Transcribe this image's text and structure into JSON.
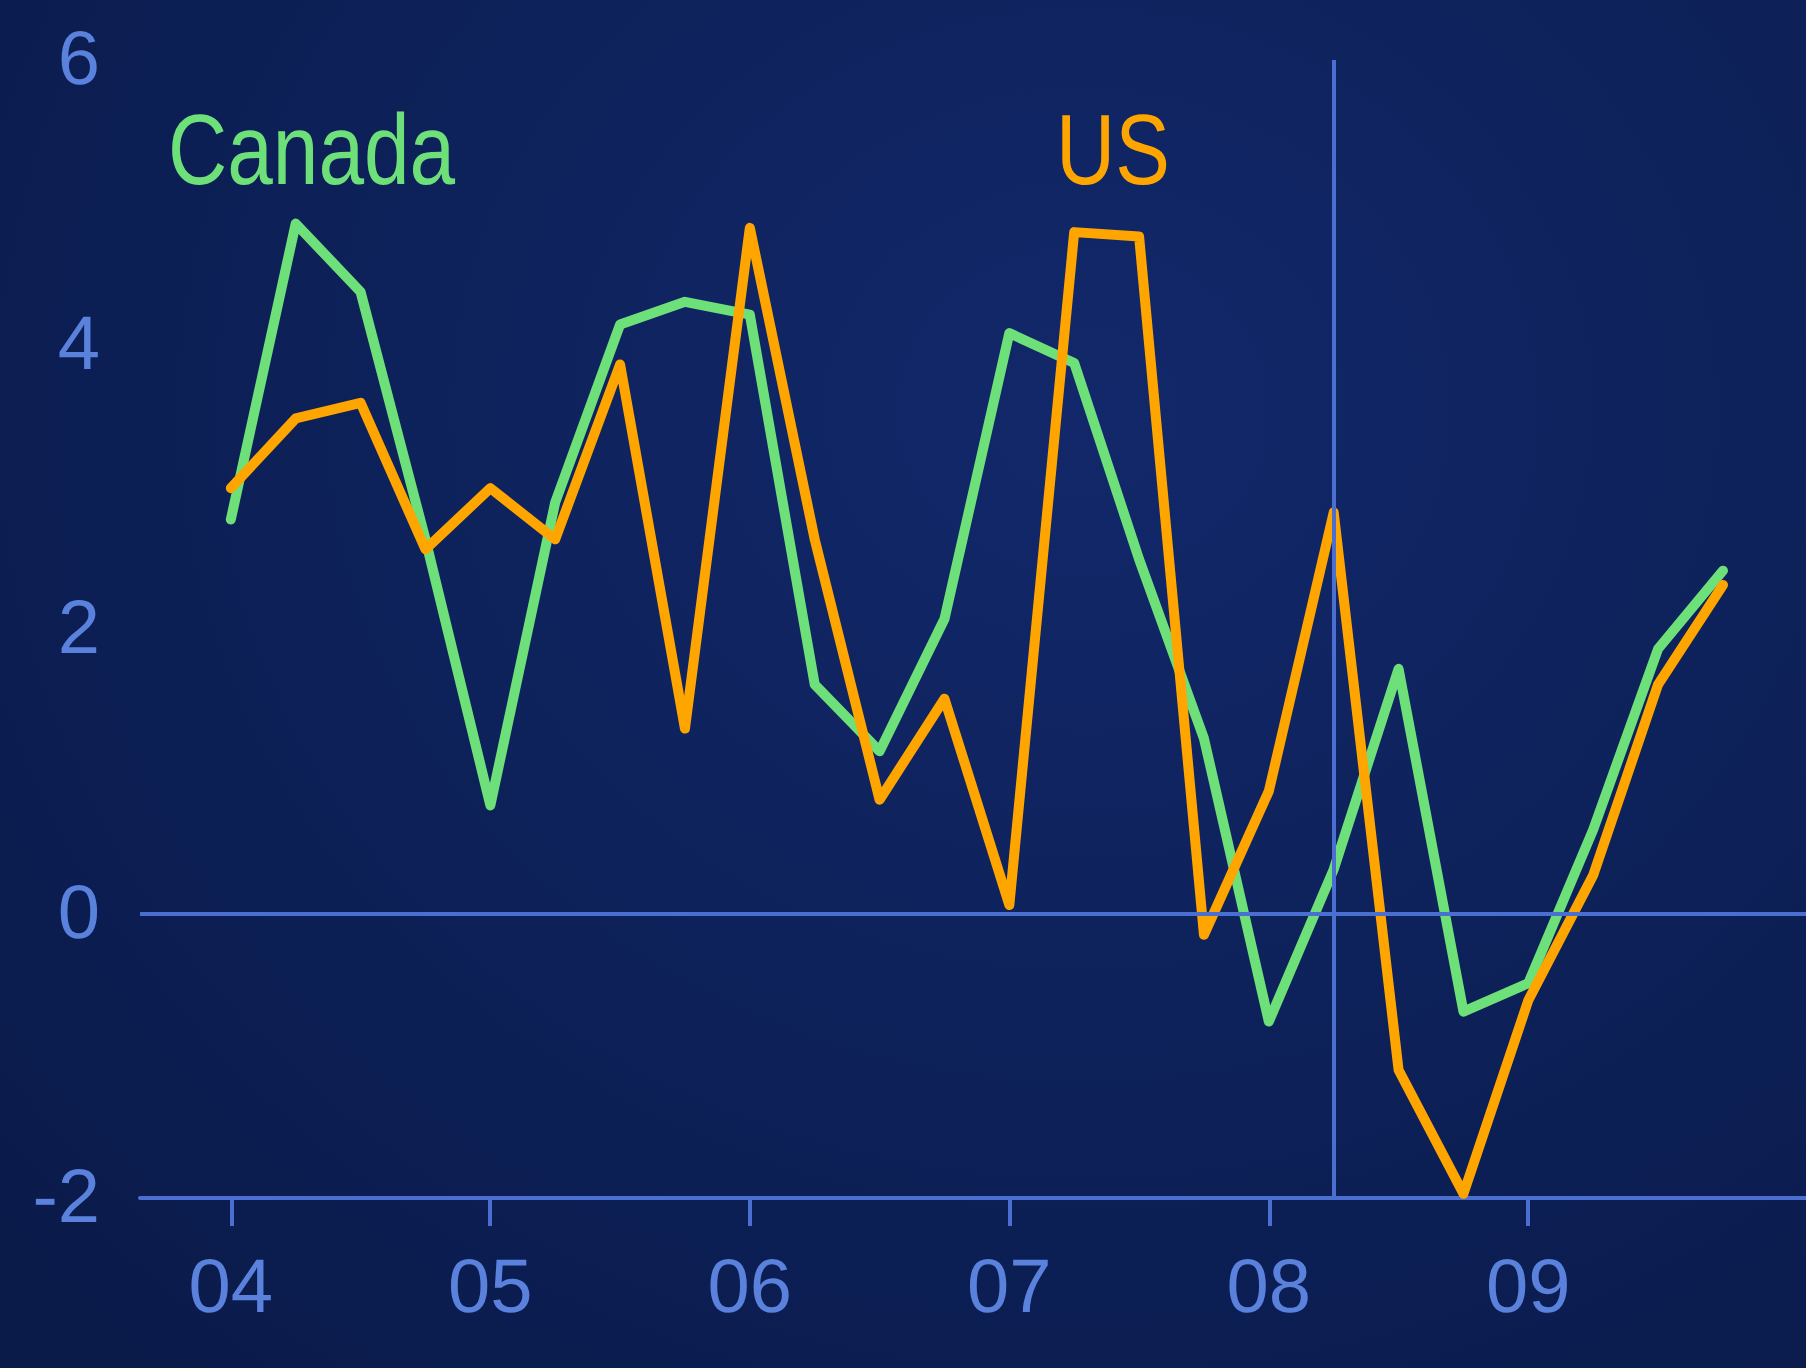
{
  "chart_data": {
    "type": "line",
    "x": [
      2004,
      2004.25,
      2004.5,
      2004.75,
      2005,
      2005.25,
      2005.5,
      2005.75,
      2006,
      2006.25,
      2006.5,
      2006.75,
      2007,
      2007.25,
      2007.5,
      2007.75,
      2008,
      2008.25,
      2008.5,
      2008.75,
      2009,
      2009.25,
      2009.5,
      2009.75
    ],
    "series": [
      {
        "name": "Canada",
        "color": "#6ee07a",
        "values": [
          2.77,
          4.85,
          4.37,
          2.63,
          0.76,
          2.89,
          4.14,
          4.3,
          4.21,
          1.61,
          1.14,
          2.07,
          4.08,
          3.87,
          2.49,
          1.23,
          -0.76,
          0.31,
          1.72,
          -0.69,
          -0.49,
          0.59,
          1.86,
          2.41
        ]
      },
      {
        "name": "US",
        "color": "#ffa500",
        "values": [
          2.99,
          3.48,
          3.59,
          2.56,
          2.99,
          2.63,
          3.86,
          1.3,
          4.82,
          2.63,
          0.8,
          1.51,
          0.06,
          4.79,
          4.76,
          -0.15,
          0.86,
          2.82,
          -1.1,
          -1.97,
          -0.61,
          0.27,
          1.61,
          2.31
        ]
      }
    ],
    "xlim": [
      2003.65,
      2010.07
    ],
    "xticks": [
      {
        "value": 2004,
        "label": "04"
      },
      {
        "value": 2005,
        "label": "05"
      },
      {
        "value": 2006,
        "label": "06"
      },
      {
        "value": 2007,
        "label": "07"
      },
      {
        "value": 2008,
        "label": "08"
      },
      {
        "value": 2009,
        "label": "09"
      }
    ],
    "ylim": [
      -2,
      6
    ],
    "yticks": [
      -2,
      0,
      2,
      4,
      6
    ],
    "ref_lines": [
      {
        "axis": "y",
        "value": 0,
        "color": "#4a6fd0"
      },
      {
        "axis": "x",
        "value": 2008.25,
        "color": "#4a6fd0"
      }
    ],
    "grid": false,
    "legend": false,
    "marker": "none",
    "line_style": "solid"
  }
}
